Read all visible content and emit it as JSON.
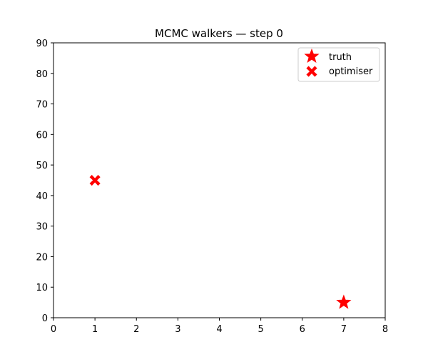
{
  "chart_data": {
    "type": "scatter",
    "title": "MCMC walkers — step 0",
    "xlabel": "",
    "ylabel": "",
    "xlim": [
      0,
      8
    ],
    "ylim": [
      0,
      90
    ],
    "xticks": [
      "0",
      "1",
      "2",
      "3",
      "4",
      "5",
      "6",
      "7",
      "8"
    ],
    "yticks": [
      "0",
      "10",
      "20",
      "30",
      "40",
      "50",
      "60",
      "70",
      "80",
      "90"
    ],
    "grid": false,
    "legend_position": "top-right",
    "series": [
      {
        "name": "truth",
        "marker": "star",
        "color": "#ff0000",
        "points": [
          [
            7,
            5
          ]
        ]
      },
      {
        "name": "optimiser",
        "marker": "x-filled",
        "color": "#ff0000",
        "points": [
          [
            1,
            45
          ]
        ]
      }
    ]
  }
}
